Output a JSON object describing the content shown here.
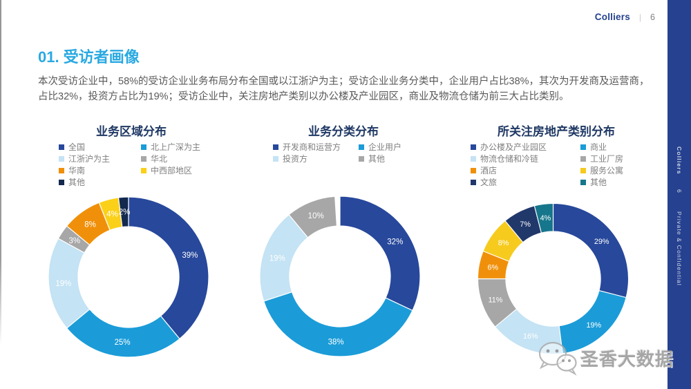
{
  "header": {
    "brand": "Colliers",
    "separator": "|",
    "page_number": "6"
  },
  "side_rail": {
    "brand": "Colliers",
    "page_number": "6",
    "label": "Private & Confidential",
    "background": "#25418F"
  },
  "section": {
    "title": "01. 受访者画像",
    "title_color": "#29A9E1",
    "intro": "本次受访企业中，58%的受访企业业务布局分布全国或以江浙沪为主；受访企业业务分类中，企业用户占比38%，其次为开发商及运营商，占比32%，投资方占比为19%；受访企业中，关注房地产类别以办公楼及产业园区，商业及物流仓储为前三大占比类别。"
  },
  "watermark": {
    "icon": "wechat-icon",
    "text": "圣香大数据"
  },
  "chart_data": [
    {
      "type": "pie",
      "subtype": "donut",
      "title": "业务区域分布",
      "legend_position": "top",
      "legend_columns": 2,
      "start_angle": "12-oclock",
      "direction": "clockwise",
      "value_suffix": "%",
      "series": [
        {
          "label": "全国",
          "value": 39,
          "color": "#27489B"
        },
        {
          "label": "北上广深为主",
          "value": 25,
          "color": "#1B9CD8"
        },
        {
          "label": "江浙沪为主",
          "value": 19,
          "color": "#C4E3F4"
        },
        {
          "label": "华北",
          "value": 3,
          "color": "#A7A7A7"
        },
        {
          "label": "华南",
          "value": 8,
          "color": "#F0900A"
        },
        {
          "label": "中西部地区",
          "value": 4,
          "color": "#FBD018"
        },
        {
          "label": "其他",
          "value": 2,
          "color": "#14294E"
        }
      ]
    },
    {
      "type": "pie",
      "subtype": "donut",
      "title": "业务分类分布",
      "legend_position": "top",
      "legend_columns": 2,
      "start_angle": "12-oclock",
      "direction": "clockwise",
      "value_suffix": "%",
      "series": [
        {
          "label": "开发商和运营方",
          "value": 32,
          "color": "#27489B"
        },
        {
          "label": "企业用户",
          "value": 38,
          "color": "#1B9CD8"
        },
        {
          "label": "投资方",
          "value": 19,
          "color": "#C4E3F4"
        },
        {
          "label": "其他",
          "value": 10,
          "color": "#A7A7A7"
        }
      ]
    },
    {
      "type": "pie",
      "subtype": "donut",
      "title": "所关注房地产类别分布",
      "legend_position": "top",
      "legend_columns": 2,
      "start_angle": "12-oclock",
      "direction": "clockwise",
      "value_suffix": "%",
      "series": [
        {
          "label": "办公楼及产业园区",
          "value": 29,
          "color": "#27489B"
        },
        {
          "label": "商业",
          "value": 19,
          "color": "#1B9CD8"
        },
        {
          "label": "物流仓储和冷链",
          "value": 16,
          "color": "#C4E3F4"
        },
        {
          "label": "工业厂房",
          "value": 11,
          "color": "#A7A7A7"
        },
        {
          "label": "酒店",
          "value": 6,
          "color": "#F0900A"
        },
        {
          "label": "服务公寓",
          "value": 8,
          "color": "#F6CB1E"
        },
        {
          "label": "文旅",
          "value": 7,
          "color": "#21386B"
        },
        {
          "label": "其他",
          "value": 4,
          "color": "#16768C"
        }
      ]
    }
  ]
}
